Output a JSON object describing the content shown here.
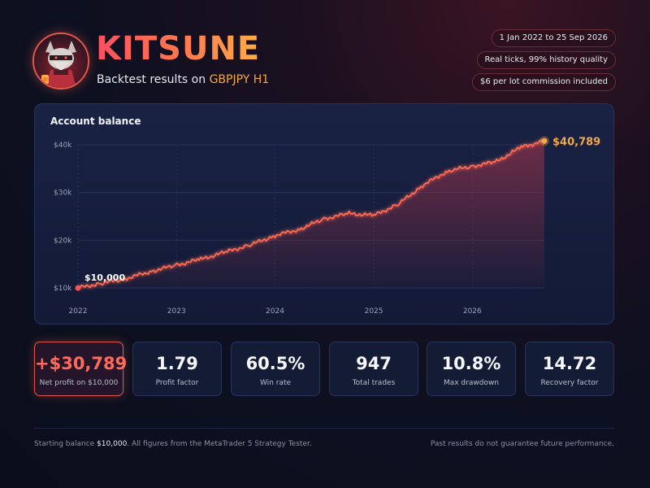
{
  "header": {
    "brand": "KITSUNE",
    "subtitle_prefix": "Backtest results on",
    "pair": "GBPJPY H1",
    "badges": [
      "1 Jan 2022 to 25 Sep 2026",
      "Real ticks, 99% history quality",
      "$6 per lot commission included"
    ]
  },
  "colors": {
    "accent": "#ff5a4f",
    "highlight": "#f3a847",
    "card_bg": "#161d3c",
    "page_bg": "#0b0f1d"
  },
  "stats": [
    {
      "value": "+$30,789",
      "label": "Net profit on $10,000"
    },
    {
      "value": "1.79",
      "label": "Profit factor"
    },
    {
      "value": "60.5%",
      "label": "Win rate"
    },
    {
      "value": "947",
      "label": "Total trades"
    },
    {
      "value": "10.8%",
      "label": "Max drawdown"
    },
    {
      "value": "14.72",
      "label": "Recovery factor"
    }
  ],
  "footer": {
    "left_prefix": "Starting balance",
    "left_amount": "$10,000",
    "left_suffix": ". All figures from the MetaTrader 5 Strategy Tester.",
    "right": "Past results do not guarantee future performance."
  },
  "chart_data": {
    "type": "area",
    "title": "Account balance",
    "xlabel": "",
    "ylabel": "",
    "x_ticks": [
      "2022",
      "2023",
      "2024",
      "2025",
      "2026"
    ],
    "y_ticks": [
      "$10k",
      "$20k",
      "$30k",
      "$40k"
    ],
    "ylim": [
      10000,
      40000
    ],
    "xlim": [
      "2022-01-01",
      "2026-09-25"
    ],
    "grid": true,
    "start_label": "$10,000",
    "end_label": "$40,789",
    "series": [
      {
        "x": [
          "2022-01-01",
          "2022-04-01",
          "2022-07-01",
          "2022-10-01",
          "2023-01-01",
          "2023-04-01",
          "2023-07-01",
          "2023-10-01",
          "2024-01-01",
          "2024-04-01",
          "2024-07-01",
          "2024-10-01",
          "2025-01-01",
          "2025-04-01",
          "2025-07-01",
          "2025-10-01",
          "2026-01-01",
          "2026-04-01",
          "2026-07-01",
          "2026-09-25"
        ],
        "values": [
          10000,
          11000,
          12000,
          13500,
          14800,
          16000,
          17500,
          19000,
          21000,
          22300,
          24500,
          25600,
          25200,
          27500,
          31500,
          34500,
          35500,
          36500,
          39500,
          40789
        ]
      }
    ]
  }
}
